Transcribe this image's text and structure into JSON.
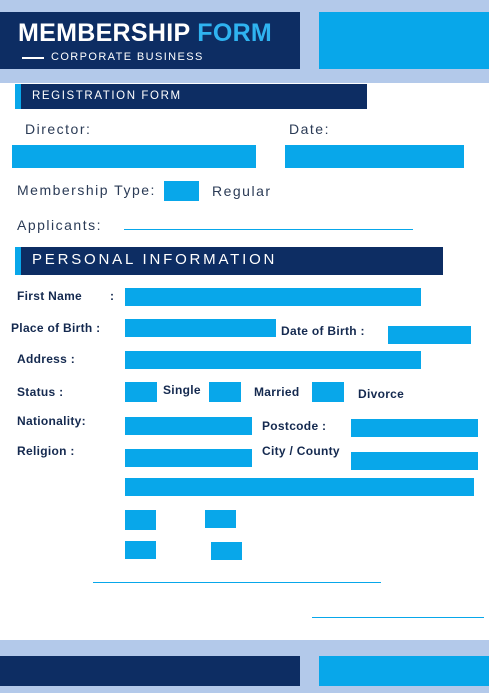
{
  "header": {
    "title_main": "MEMBERSHIP",
    "title_accent": "FORM",
    "subtitle": "CORPORATE BUSINESS"
  },
  "registration": {
    "section_label": "REGISTRATION FORM",
    "director_label": "Director:",
    "date_label": "Date:",
    "membership_type_label": "Membership Type:",
    "membership_type_option": "Regular",
    "applicants_label": "Applicants:"
  },
  "personal": {
    "section_label": "PERSONAL INFORMATION",
    "first_name_label": "First Name",
    "first_name_colon": ":",
    "place_of_birth_label": "Place of Birth  :",
    "date_of_birth_label": "Date of Birth  :",
    "address_label": "Address  :",
    "status_label": "Status :",
    "status_options": [
      "Single",
      "Married",
      "Divorce"
    ],
    "nationality_label": "Nationality:",
    "postcode_label": "Postcode :",
    "religion_label": "Religion :",
    "city_label": "City / County"
  },
  "colors": {
    "navy": "#0d2d63",
    "accent": "#08a7ea",
    "band": "#b3c9ea"
  }
}
